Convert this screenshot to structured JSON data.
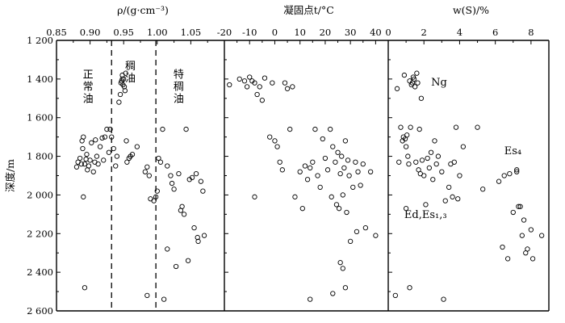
{
  "chart_data": {
    "type": "scatter",
    "ylabel": "深度/m",
    "y_ticks": [
      "1 200",
      "1 400",
      "1 600",
      "1 800",
      "2 000",
      "2 200",
      "2 400",
      "2 600"
    ],
    "y_tick_values": [
      1200,
      1400,
      1600,
      1800,
      2000,
      2200,
      2400,
      2600
    ],
    "ylim": [
      1200,
      2600
    ],
    "y_inverted": true,
    "panels": [
      {
        "title": "ρ/(g·cm⁻³)",
        "xlim": [
          0.85,
          1.1
        ],
        "x_ticks": [
          "0.85",
          "0.90",
          "0.95",
          "1.00",
          "1.05"
        ],
        "x_tick_values": [
          0.85,
          0.9,
          0.95,
          1.0,
          1.05
        ],
        "dividers": [
          0.932,
          0.998
        ],
        "annotations": [
          {
            "text": "正常油",
            "x": 0.897,
            "y": 1395,
            "vertical": true
          },
          {
            "text": "稠油",
            "x": 0.96,
            "y": 1350,
            "vertical": true
          },
          {
            "text": "特稠油",
            "x": 1.032,
            "y": 1395,
            "vertical": true
          }
        ],
        "points": [
          [
            0.88,
            1855
          ],
          [
            0.882,
            1830
          ],
          [
            0.885,
            1810
          ],
          [
            0.887,
            1840
          ],
          [
            0.888,
            1720
          ],
          [
            0.889,
            1760
          ],
          [
            0.89,
            1700
          ],
          [
            0.892,
            1840
          ],
          [
            0.894,
            1815
          ],
          [
            0.895,
            1790
          ],
          [
            0.896,
            1870
          ],
          [
            0.898,
            1850
          ],
          [
            0.9,
            1820
          ],
          [
            0.902,
            1730
          ],
          [
            0.905,
            1880
          ],
          [
            0.907,
            1830
          ],
          [
            0.908,
            1715
          ],
          [
            0.91,
            1800
          ],
          [
            0.912,
            1840
          ],
          [
            0.915,
            1750
          ],
          [
            0.918,
            1705
          ],
          [
            0.92,
            1820
          ],
          [
            0.922,
            1700
          ],
          [
            0.925,
            1660
          ],
          [
            0.928,
            1780
          ],
          [
            0.93,
            1660
          ],
          [
            0.932,
            1700
          ],
          [
            0.935,
            1760
          ],
          [
            0.938,
            1850
          ],
          [
            0.94,
            1800
          ],
          [
            0.943,
            1520
          ],
          [
            0.945,
            1480
          ],
          [
            0.946,
            1420
          ],
          [
            0.947,
            1410
          ],
          [
            0.948,
            1400
          ],
          [
            0.948,
            1380
          ],
          [
            0.949,
            1430
          ],
          [
            0.95,
            1400
          ],
          [
            0.951,
            1440
          ],
          [
            0.952,
            1460
          ],
          [
            0.953,
            1370
          ],
          [
            0.954,
            1720
          ],
          [
            0.955,
            1830
          ],
          [
            0.958,
            1810
          ],
          [
            0.96,
            1800
          ],
          [
            0.963,
            1790
          ],
          [
            0.97,
            1750
          ],
          [
            0.982,
            1880
          ],
          [
            0.985,
            1855
          ],
          [
            0.988,
            1900
          ],
          [
            0.99,
            2020
          ],
          [
            0.995,
            2030
          ],
          [
            0.998,
            2010
          ],
          [
            1.0,
            1980
          ],
          [
            1.002,
            1810
          ],
          [
            1.005,
            1830
          ],
          [
            1.008,
            1660
          ],
          [
            1.015,
            1850
          ],
          [
            1.02,
            1900
          ],
          [
            1.022,
            1940
          ],
          [
            1.025,
            1970
          ],
          [
            1.028,
            2370
          ],
          [
            1.032,
            1890
          ],
          [
            1.035,
            2080
          ],
          [
            1.037,
            2060
          ],
          [
            1.04,
            2100
          ],
          [
            1.043,
            1660
          ],
          [
            1.046,
            2340
          ],
          [
            1.048,
            1920
          ],
          [
            1.052,
            1910
          ],
          [
            1.055,
            2170
          ],
          [
            1.058,
            1890
          ],
          [
            1.06,
            2220
          ],
          [
            1.061,
            2240
          ],
          [
            1.065,
            1930
          ],
          [
            1.068,
            1980
          ],
          [
            1.07,
            2210
          ],
          [
            0.89,
            2010
          ],
          [
            0.892,
            2480
          ],
          [
            0.985,
            2520
          ],
          [
            1.01,
            2540
          ],
          [
            1.015,
            2280
          ]
        ]
      },
      {
        "title": "凝固点t/°C",
        "xlim": [
          -20,
          45
        ],
        "x_ticks": [
          "-20",
          "-10",
          "0",
          "10",
          "20",
          "30",
          "40"
        ],
        "x_tick_values": [
          -20,
          -10,
          0,
          10,
          20,
          30,
          40
        ],
        "points": [
          [
            -18,
            1430
          ],
          [
            -14,
            1400
          ],
          [
            -12,
            1410
          ],
          [
            -11,
            1440
          ],
          [
            -10,
            1390
          ],
          [
            -9,
            1410
          ],
          [
            -8,
            1420
          ],
          [
            -7,
            1480
          ],
          [
            -6,
            1440
          ],
          [
            -5,
            1510
          ],
          [
            -4,
            1395
          ],
          [
            -2,
            1700
          ],
          [
            -1,
            1420
          ],
          [
            0,
            1720
          ],
          [
            1,
            1750
          ],
          [
            2,
            1830
          ],
          [
            3,
            1870
          ],
          [
            4,
            1420
          ],
          [
            5,
            1450
          ],
          [
            6,
            1660
          ],
          [
            7,
            1440
          ],
          [
            8,
            2010
          ],
          [
            10,
            1880
          ],
          [
            11,
            2070
          ],
          [
            12,
            1850
          ],
          [
            13,
            1920
          ],
          [
            14,
            1860
          ],
          [
            15,
            1830
          ],
          [
            16,
            1660
          ],
          [
            17,
            1900
          ],
          [
            18,
            1960
          ],
          [
            19,
            1710
          ],
          [
            20,
            1810
          ],
          [
            21,
            1870
          ],
          [
            22,
            1660
          ],
          [
            22.5,
            2010
          ],
          [
            23,
            1750
          ],
          [
            24,
            1830
          ],
          [
            24.5,
            2050
          ],
          [
            25,
            1780
          ],
          [
            25.5,
            2070
          ],
          [
            26,
            1890
          ],
          [
            26.5,
            1800
          ],
          [
            27,
            2000
          ],
          [
            27.5,
            1860
          ],
          [
            28,
            1720
          ],
          [
            28.5,
            2090
          ],
          [
            29,
            1820
          ],
          [
            29.5,
            1900
          ],
          [
            30,
            2240
          ],
          [
            31,
            1960
          ],
          [
            32,
            1830
          ],
          [
            32.5,
            2190
          ],
          [
            33,
            1880
          ],
          [
            34,
            1950
          ],
          [
            35,
            1840
          ],
          [
            36,
            2170
          ],
          [
            38,
            1880
          ],
          [
            40,
            2210
          ],
          [
            26,
            2350
          ],
          [
            27,
            2380
          ],
          [
            28,
            2480
          ],
          [
            14,
            2540
          ],
          [
            23,
            2510
          ],
          [
            -8,
            2010
          ]
        ]
      },
      {
        "title": "w(S)/%",
        "xlim": [
          0,
          9
        ],
        "x_ticks": [
          "0",
          "2",
          "4",
          "6",
          "8"
        ],
        "x_tick_values": [
          0,
          2,
          4,
          6,
          8
        ],
        "annotations": [
          {
            "text": "Ng",
            "x": 2.4,
            "y": 1435
          },
          {
            "text": "Es₄",
            "x": 6.5,
            "y": 1790
          },
          {
            "text": "Ed,Es₁,₃",
            "x": 0.9,
            "y": 2120
          }
        ],
        "points": [
          [
            0.5,
            1450
          ],
          [
            0.6,
            1830
          ],
          [
            0.7,
            1650
          ],
          [
            0.8,
            1720
          ],
          [
            0.85,
            1700
          ],
          [
            0.9,
            1380
          ],
          [
            0.95,
            1710
          ],
          [
            1.0,
            1750
          ],
          [
            1.05,
            1690
          ],
          [
            1.1,
            1800
          ],
          [
            1.15,
            1840
          ],
          [
            1.2,
            1410
          ],
          [
            1.25,
            1650
          ],
          [
            1.3,
            1430
          ],
          [
            1.35,
            1420
          ],
          [
            1.4,
            1390
          ],
          [
            1.45,
            1400
          ],
          [
            1.5,
            1440
          ],
          [
            1.55,
            1830
          ],
          [
            1.6,
            1370
          ],
          [
            1.65,
            1420
          ],
          [
            1.7,
            1870
          ],
          [
            1.75,
            1660
          ],
          [
            1.8,
            1890
          ],
          [
            1.85,
            1500
          ],
          [
            1.9,
            1820
          ],
          [
            2.0,
            1900
          ],
          [
            2.1,
            2050
          ],
          [
            2.2,
            1810
          ],
          [
            2.3,
            1860
          ],
          [
            2.4,
            1780
          ],
          [
            2.5,
            1920
          ],
          [
            2.6,
            1720
          ],
          [
            2.7,
            1840
          ],
          [
            2.8,
            1800
          ],
          [
            3.0,
            1880
          ],
          [
            3.2,
            2030
          ],
          [
            3.4,
            1960
          ],
          [
            3.5,
            1840
          ],
          [
            3.6,
            2010
          ],
          [
            3.7,
            1830
          ],
          [
            3.8,
            1650
          ],
          [
            3.9,
            2020
          ],
          [
            4.0,
            1900
          ],
          [
            4.2,
            1750
          ],
          [
            5.0,
            1650
          ],
          [
            5.3,
            1970
          ],
          [
            6.2,
            1930
          ],
          [
            6.4,
            2270
          ],
          [
            6.5,
            1900
          ],
          [
            6.7,
            2330
          ],
          [
            6.8,
            1890
          ],
          [
            7.0,
            2090
          ],
          [
            7.2,
            1880
          ],
          [
            7.4,
            2060
          ],
          [
            7.5,
            2210
          ],
          [
            7.6,
            2130
          ],
          [
            7.7,
            2300
          ],
          [
            7.8,
            2280
          ],
          [
            8.0,
            2180
          ],
          [
            8.1,
            2330
          ],
          [
            8.6,
            2210
          ],
          [
            7.2,
            1870
          ],
          [
            1.0,
            2070
          ],
          [
            1.2,
            2480
          ],
          [
            3.1,
            2540
          ],
          [
            0.4,
            2520
          ],
          [
            7.3,
            2060
          ]
        ]
      }
    ]
  }
}
